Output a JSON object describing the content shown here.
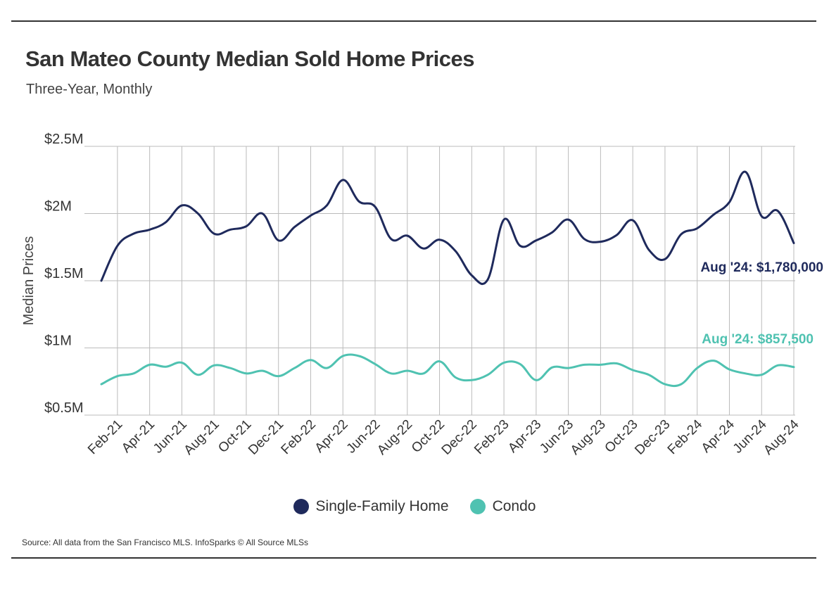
{
  "page": {
    "title": "San Mateo County Median Sold Home Prices",
    "subtitle": "Three-Year, Monthly",
    "source": "Source:  All data from the San Francisco MLS. InfoSparks © All Source MLSs"
  },
  "colors": {
    "single_family": "#1f2a5c",
    "condo": "#4fc2b1",
    "grid": "#bbbbbb",
    "text": "#333333"
  },
  "chart_data": {
    "type": "line",
    "title": "San Mateo County Median Sold Home Prices",
    "subtitle": "Three-Year, Monthly",
    "xlabel": "",
    "ylabel": "Median Prices",
    "ylim": [
      500000,
      2500000
    ],
    "yticks": [
      500000,
      1000000,
      1500000,
      2000000,
      2500000
    ],
    "ytick_labels": [
      "$0.5M",
      "$1M",
      "$1.5M",
      "$2M",
      "$2.5M"
    ],
    "grid": true,
    "x": [
      "Jan-21",
      "Feb-21",
      "Mar-21",
      "Apr-21",
      "May-21",
      "Jun-21",
      "Jul-21",
      "Aug-21",
      "Sep-21",
      "Oct-21",
      "Nov-21",
      "Dec-21",
      "Jan-22",
      "Feb-22",
      "Mar-22",
      "Apr-22",
      "May-22",
      "Jun-22",
      "Jul-22",
      "Aug-22",
      "Sep-22",
      "Oct-22",
      "Nov-22",
      "Dec-22",
      "Jan-23",
      "Feb-23",
      "Mar-23",
      "Apr-23",
      "May-23",
      "Jun-23",
      "Jul-23",
      "Aug-23",
      "Sep-23",
      "Oct-23",
      "Nov-23",
      "Dec-23",
      "Jan-24",
      "Feb-24",
      "Mar-24",
      "Apr-24",
      "May-24",
      "Jun-24",
      "Jul-24",
      "Aug-24"
    ],
    "tick_labels": [
      "Feb-21",
      "Apr-21",
      "Jun-21",
      "Aug-21",
      "Oct-21",
      "Dec-21",
      "Feb-22",
      "Apr-22",
      "Jun-22",
      "Aug-22",
      "Oct-22",
      "Dec-22",
      "Feb-23",
      "Apr-23",
      "Jun-23",
      "Aug-23",
      "Oct-23",
      "Dec-23",
      "Feb-24",
      "Apr-24",
      "Jun-24",
      "Aug-24"
    ],
    "series": [
      {
        "name": "Single-Family Home",
        "values": [
          1500000,
          1760000,
          1850000,
          1880000,
          1935000,
          2060000,
          2000000,
          1850000,
          1880000,
          1905000,
          2000000,
          1800000,
          1900000,
          1985000,
          2060000,
          2250000,
          2090000,
          2050000,
          1810000,
          1835000,
          1740000,
          1805000,
          1720000,
          1540000,
          1510000,
          1955000,
          1760000,
          1800000,
          1860000,
          1955000,
          1810000,
          1790000,
          1840000,
          1950000,
          1730000,
          1660000,
          1845000,
          1890000,
          1990000,
          2085000,
          2310000,
          1980000,
          2020000,
          1780000
        ],
        "end_label": "Aug '24: $1,780,000"
      },
      {
        "name": "Condo",
        "values": [
          730000,
          790000,
          810000,
          875000,
          860000,
          890000,
          800000,
          870000,
          850000,
          810000,
          830000,
          790000,
          850000,
          910000,
          850000,
          940000,
          940000,
          880000,
          810000,
          830000,
          810000,
          900000,
          780000,
          760000,
          800000,
          890000,
          880000,
          760000,
          855000,
          850000,
          875000,
          875000,
          885000,
          835000,
          800000,
          730000,
          730000,
          850000,
          905000,
          840000,
          810000,
          800000,
          870000,
          857500
        ],
        "end_label": "Aug '24: $857,500"
      }
    ],
    "legend": [
      "Single-Family Home",
      "Condo"
    ],
    "legend_position": "bottom-center"
  }
}
